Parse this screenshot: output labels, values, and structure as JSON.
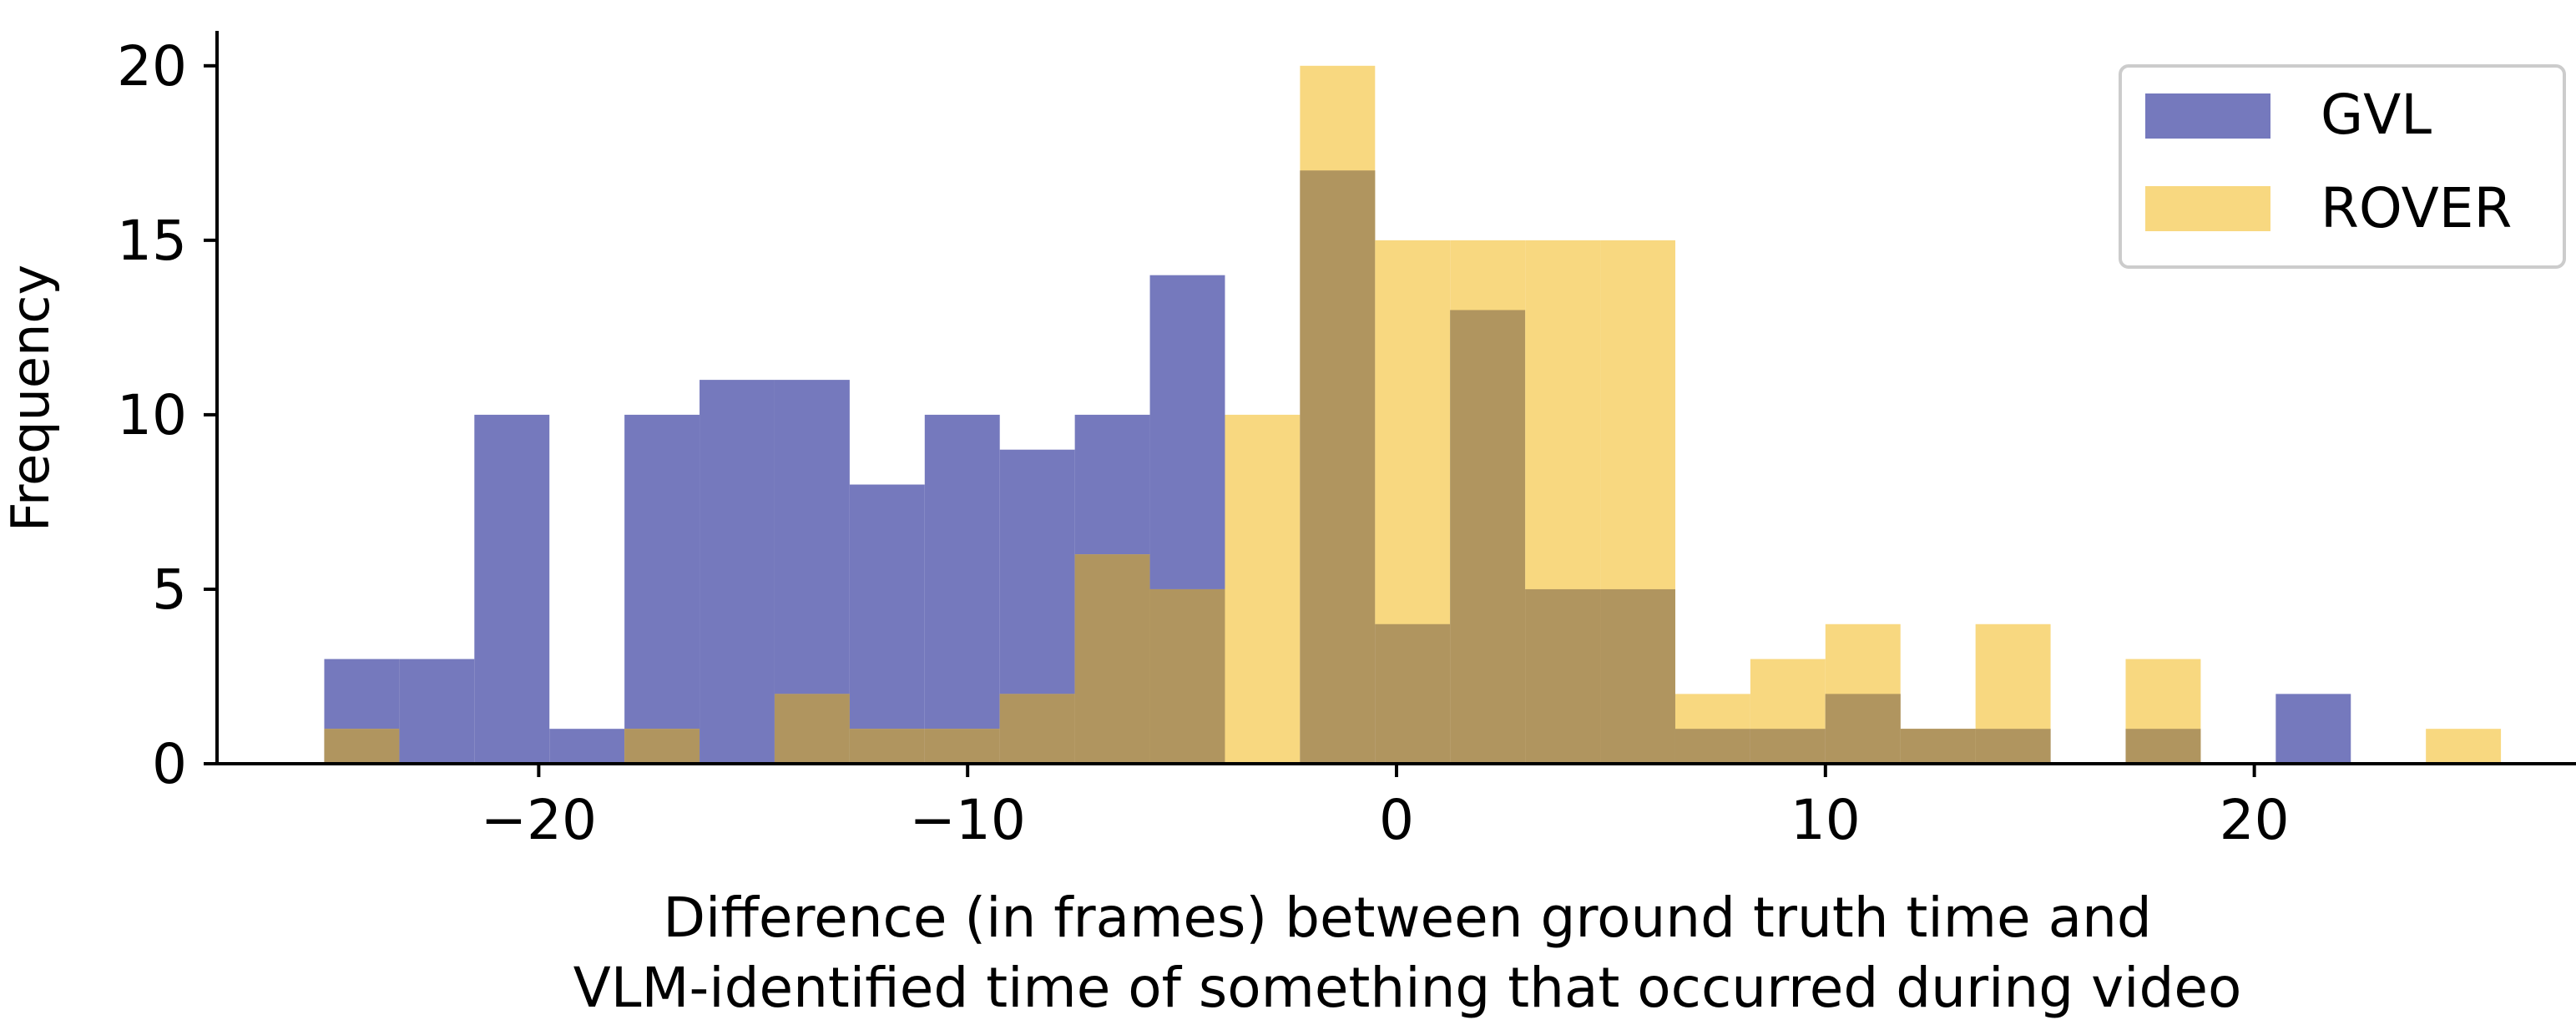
{
  "chart_data": {
    "type": "bar",
    "title": "",
    "xlabel": [
      "Difference (in frames) between ground truth time and",
      "VLM-identified time of something that occurred during video"
    ],
    "ylabel": "Frequency",
    "xlim": [
      -27.5,
      27.5
    ],
    "ylim": [
      0,
      21
    ],
    "xticks": [
      -20,
      -10,
      0,
      10,
      20
    ],
    "xtick_labels": [
      "−20",
      "−10",
      "0",
      "10",
      "20"
    ],
    "yticks": [
      0,
      5,
      10,
      15,
      20
    ],
    "ytick_labels": [
      "0",
      "5",
      "10",
      "15",
      "20"
    ],
    "bin_edges": [
      -25,
      -23.25,
      -21.5,
      -19.75,
      -18,
      -16.25,
      -14.5,
      -12.75,
      -11,
      -9.25,
      -7.5,
      -5.75,
      -4,
      -2.25,
      -0.5,
      1.25,
      3,
      4.75,
      6.5,
      8.25,
      10,
      11.75,
      13.5,
      15.25,
      17,
      18.75,
      20.5,
      22.25,
      24,
      25.75
    ],
    "series": [
      {
        "name": "GVL",
        "color": "#7579bd",
        "values": [
          3,
          3,
          10,
          1,
          10,
          11,
          11,
          8,
          10,
          9,
          10,
          14,
          0,
          17,
          4,
          13,
          5,
          5,
          1,
          1,
          2,
          1,
          1,
          0,
          1,
          0,
          2,
          0,
          0
        ]
      },
      {
        "name": "ROVER",
        "color": "#f8d880",
        "values": [
          1,
          0,
          0,
          0,
          1,
          0,
          2,
          1,
          1,
          2,
          6,
          5,
          10,
          20,
          15,
          15,
          15,
          15,
          2,
          3,
          4,
          1,
          4,
          0,
          3,
          0,
          0,
          0,
          1
        ]
      }
    ],
    "overlap_color": "#b0955f",
    "legend_position": "top-right",
    "grid": false
  }
}
